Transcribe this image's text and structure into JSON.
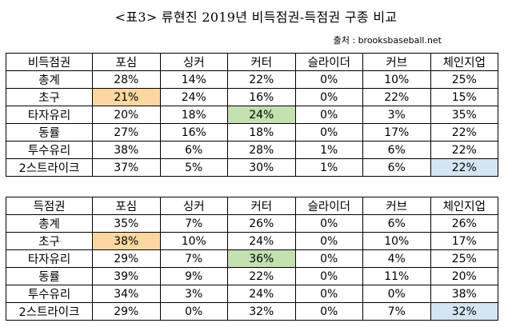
{
  "title": "<표3> 류현진 2019년 비득점권-득점권 구종 비교",
  "source": "출처 : brooksbaseball.net",
  "highlight_colors": {
    "orange": "#fad7a0",
    "green": "#c3e0b0",
    "blue": "#d5e4f2"
  },
  "table1": {
    "headers": [
      "비득점권",
      "포심",
      "싱커",
      "커터",
      "슬라이더",
      "커브",
      "체인지업"
    ],
    "rows": [
      {
        "label": "총계",
        "values": [
          "28%",
          "14%",
          "22%",
          "0%",
          "10%",
          "25%"
        ]
      },
      {
        "label": "초구",
        "values": [
          "21%",
          "24%",
          "16%",
          "0%",
          "22%",
          "15%"
        ]
      },
      {
        "label": "타자유리",
        "values": [
          "20%",
          "18%",
          "24%",
          "0%",
          "3%",
          "35%"
        ]
      },
      {
        "label": "동률",
        "values": [
          "27%",
          "16%",
          "18%",
          "0%",
          "17%",
          "22%"
        ]
      },
      {
        "label": "투수유리",
        "values": [
          "38%",
          "6%",
          "28%",
          "1%",
          "6%",
          "22%"
        ]
      },
      {
        "label": "2스트라이크",
        "values": [
          "37%",
          "5%",
          "30%",
          "1%",
          "6%",
          "22%"
        ]
      }
    ]
  },
  "table2": {
    "headers": [
      "득점권",
      "포심",
      "싱커",
      "커터",
      "슬라이더",
      "커브",
      "체인지업"
    ],
    "rows": [
      {
        "label": "총계",
        "values": [
          "35%",
          "7%",
          "26%",
          "0%",
          "6%",
          "26%"
        ]
      },
      {
        "label": "초구",
        "values": [
          "38%",
          "10%",
          "24%",
          "0%",
          "10%",
          "17%"
        ]
      },
      {
        "label": "타자유리",
        "values": [
          "29%",
          "7%",
          "36%",
          "0%",
          "4%",
          "25%"
        ]
      },
      {
        "label": "동률",
        "values": [
          "39%",
          "9%",
          "22%",
          "0%",
          "11%",
          "20%"
        ]
      },
      {
        "label": "투수유리",
        "values": [
          "34%",
          "3%",
          "24%",
          "0%",
          "0%",
          "38%"
        ]
      },
      {
        "label": "2스트라이크",
        "values": [
          "29%",
          "0%",
          "32%",
          "0%",
          "7%",
          "32%"
        ]
      }
    ]
  }
}
